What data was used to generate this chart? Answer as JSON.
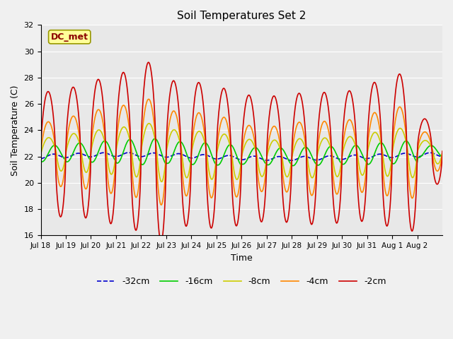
{
  "title": "Soil Temperatures Set 2",
  "xlabel": "Time",
  "ylabel": "Soil Temperature (C)",
  "ylim": [
    16,
    32
  ],
  "yticks": [
    16,
    18,
    20,
    22,
    24,
    26,
    28,
    30,
    32
  ],
  "xtick_labels": [
    "Jul 18",
    "Jul 19",
    "Jul 20",
    "Jul 21",
    "Jul 22",
    "Jul 23",
    "Jul 24",
    "Jul 25",
    "Jul 26",
    "Jul 27",
    "Jul 28",
    "Jul 29",
    "Jul 30",
    "Jul 31",
    "Aug 1",
    "Aug 2"
  ],
  "bg_color": "#e8e8e8",
  "fig_bg_color": "#f0f0f0",
  "dc_met_label": "DC_met",
  "series": [
    {
      "label": "-32cm",
      "color": "#0000cc",
      "linestyle": "--",
      "lw": 1.2
    },
    {
      "label": "-16cm",
      "color": "#00cc00",
      "linestyle": "-",
      "lw": 1.2
    },
    {
      "label": "-8cm",
      "color": "#cccc00",
      "linestyle": "-",
      "lw": 1.2
    },
    {
      "label": "-4cm",
      "color": "#ff8800",
      "linestyle": "-",
      "lw": 1.2
    },
    {
      "label": "-2cm",
      "color": "#cc0000",
      "linestyle": "-",
      "lw": 1.2
    }
  ]
}
